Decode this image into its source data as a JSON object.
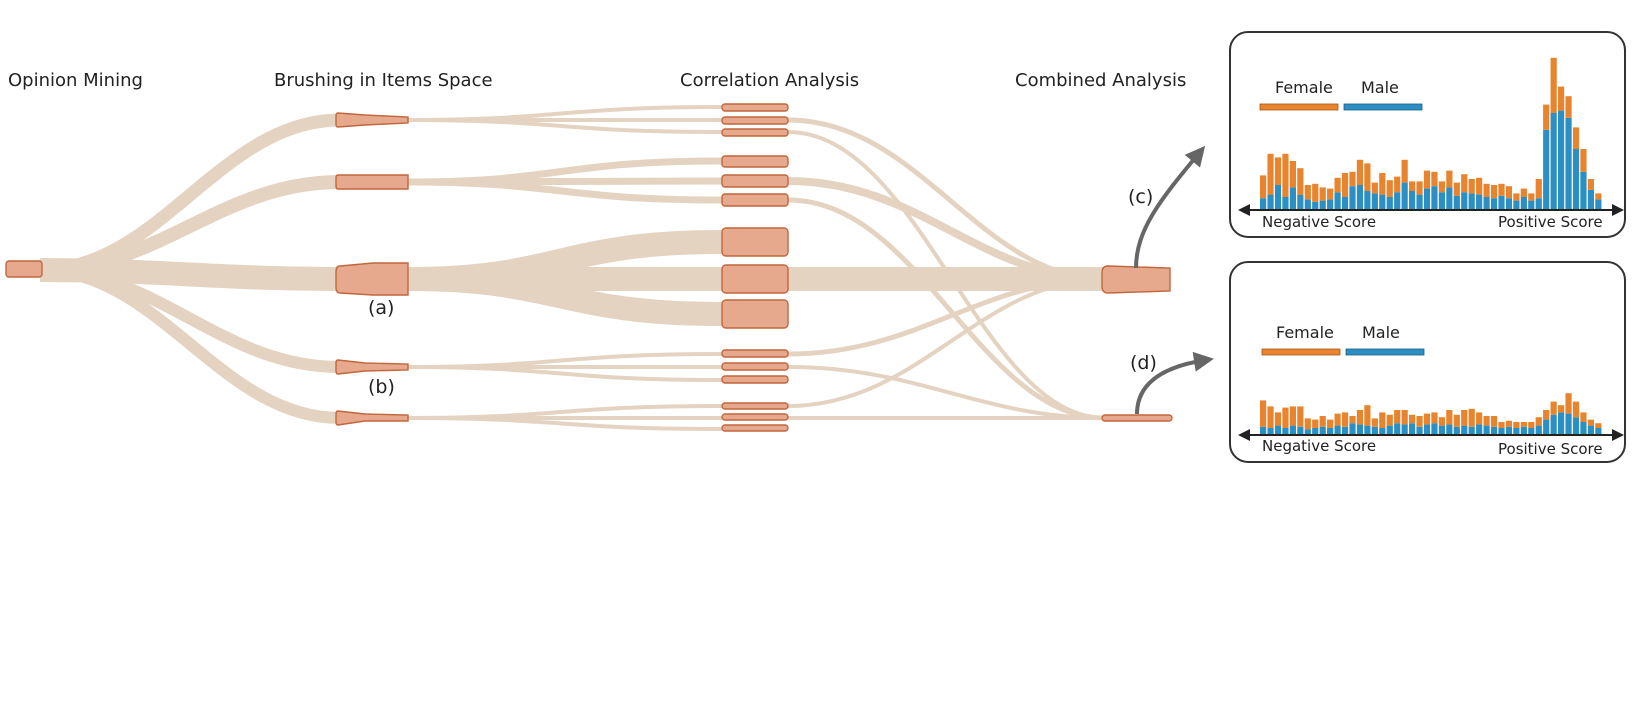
{
  "figure": {
    "stage_labels": {
      "opinion_mining": "Opinion Mining",
      "brushing": "Brushing in Items Space",
      "correlation": "Correlation Analysis",
      "combined": "Combined Analysis"
    },
    "annotations": {
      "a": "(a)",
      "b": "(b)",
      "c": "(c)",
      "d": "(d)"
    },
    "colors": {
      "flow": "#e4d3c0",
      "node_fill": "#e7a98d",
      "node_stroke": "#c1673d",
      "female": "#e8842e",
      "male": "#2b8fc4"
    },
    "panel_c": {
      "legend_female": "Female",
      "legend_male": "Male",
      "neg_label": "Negative Score",
      "pos_label": "Positive Score"
    },
    "panel_d": {
      "legend_female": "Female",
      "legend_male": "Male",
      "neg_label": "Negative Score",
      "pos_label": "Positive Score"
    }
  },
  "chart_data": [
    {
      "type": "bar",
      "stacked": true,
      "x_labels": [
        "Negative Score",
        "Positive Score"
      ],
      "legend": [
        "Female",
        "Male"
      ],
      "series": [
        {
          "name": "Male",
          "values": [
            9,
            12,
            20,
            10,
            18,
            12,
            8,
            6,
            7,
            8,
            14,
            10,
            19,
            20,
            15,
            13,
            12,
            10,
            14,
            22,
            15,
            12,
            17,
            19,
            14,
            18,
            11,
            14,
            13,
            12,
            10,
            9,
            11,
            9,
            7,
            10,
            7,
            9,
            66,
            80,
            82,
            76,
            50,
            31,
            16,
            8
          ]
        },
        {
          "name": "Female",
          "values": [
            19,
            34,
            23,
            36,
            22,
            22,
            12,
            15,
            11,
            9,
            12,
            20,
            12,
            21,
            23,
            9,
            18,
            14,
            13,
            19,
            8,
            11,
            15,
            12,
            9,
            14,
            11,
            15,
            12,
            14,
            11,
            11,
            10,
            10,
            6,
            7,
            6,
            16,
            21,
            46,
            20,
            18,
            18,
            19,
            9,
            5
          ]
        }
      ]
    },
    {
      "type": "bar",
      "stacked": true,
      "x_labels": [
        "Negative Score",
        "Positive Score"
      ],
      "legend": [
        "Female",
        "Male"
      ],
      "series": [
        {
          "name": "Male",
          "values": [
            6,
            5,
            7,
            5,
            7,
            6,
            4,
            5,
            6,
            5,
            7,
            6,
            9,
            8,
            7,
            6,
            5,
            7,
            9,
            8,
            9,
            6,
            8,
            9,
            7,
            8,
            6,
            7,
            6,
            8,
            7,
            6,
            5,
            6,
            5,
            6,
            5,
            7,
            12,
            16,
            18,
            17,
            14,
            10,
            7,
            5
          ]
        },
        {
          "name": "Female",
          "values": [
            22,
            18,
            11,
            17,
            16,
            17,
            9,
            7,
            9,
            7,
            10,
            12,
            6,
            12,
            17,
            7,
            13,
            9,
            11,
            12,
            7,
            9,
            9,
            9,
            7,
            12,
            10,
            13,
            15,
            10,
            8,
            9,
            5,
            5,
            5,
            4,
            5,
            7,
            8,
            11,
            6,
            17,
            13,
            8,
            5,
            4
          ]
        }
      ]
    }
  ]
}
